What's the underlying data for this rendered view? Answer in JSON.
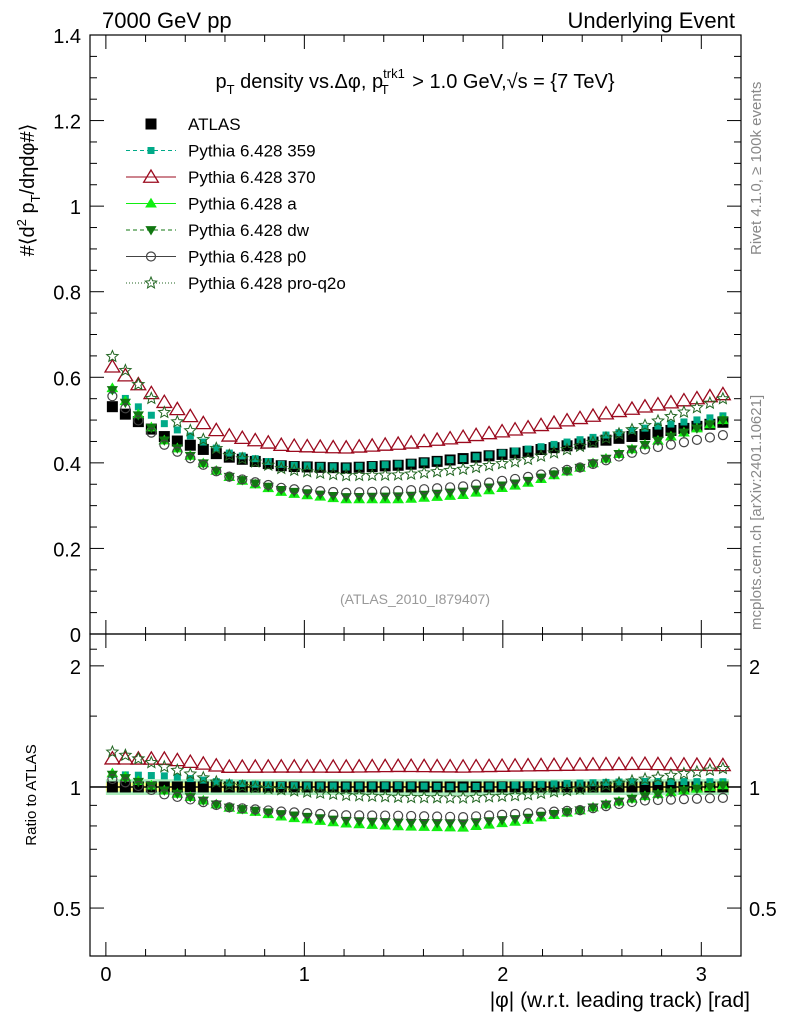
{
  "header": {
    "left": "7000 GeV pp",
    "right": "Underlying Event"
  },
  "side_labels": {
    "rivet": "Rivet 4.1.0, ≥ 100k events",
    "mcplots": "mcplots.cern.ch [arXiv:2401.10621]"
  },
  "watermark": "(ATLAS_2010_I879407)",
  "title": {
    "p": "p",
    "T": "T",
    "mid": " density vs.Δφ, p",
    "trk": "trk1",
    "tail": " > 1.0 GeV,√s = {7 TeV}"
  },
  "ratio_ylabel": "Ratio to ATLAS",
  "colors": {
    "atlas": "#000000",
    "p359": "#00aa88",
    "p370": "#9b0a1e",
    "pa": "#11ee11",
    "pdw": "#117711",
    "pp0": "#444444",
    "pq2o": "#226622",
    "band_inner": "#ffff88",
    "band_outer": "#aaeebb"
  },
  "chart_data": {
    "type": "scatter",
    "title": "p_T density vs.Δφ, p_T^trk1 > 1.0 GeV,√s = {7 TeV}",
    "xlabel": "|φ| (w.r.t. leading track) [rad]",
    "ylabel": "#⟨d² p_T/dηdφ#⟩",
    "xlim": [
      -0.08,
      3.2
    ],
    "ylim": [
      0,
      1.4
    ],
    "ratio_ylim": [
      0.38,
      2.4
    ],
    "xticks": [
      0,
      1,
      2,
      3
    ],
    "yticks": [
      0,
      0.2,
      0.4,
      0.6,
      0.8,
      1,
      1.2,
      1.4
    ],
    "ytick_labels": [
      "0",
      "0.2",
      "0.4",
      "0.6",
      "0.8",
      "1",
      "1.2",
      "1.4"
    ],
    "ratio_yticks": [
      0.5,
      1,
      2
    ],
    "ratio_ytick_labels": [
      "0.5",
      "1",
      "2"
    ],
    "x_count": 48,
    "x_start": 0.0327,
    "x_step": 0.06545,
    "legend_entries": [
      "ATLAS",
      "Pythia 6.428 359",
      "Pythia 6.428 370",
      "Pythia 6.428 a",
      "Pythia 6.428 dw",
      "Pythia 6.428 p0",
      "Pythia 6.428 pro-q2o"
    ],
    "series": [
      {
        "name": "ATLAS",
        "points": [
          [
            0,
            0.54
          ],
          [
            0.3,
            0.46
          ],
          [
            0.6,
            0.415
          ],
          [
            0.9,
            0.392
          ],
          [
            1.2,
            0.388
          ],
          [
            1.5,
            0.395
          ],
          [
            1.8,
            0.41
          ],
          [
            2.1,
            0.425
          ],
          [
            2.4,
            0.445
          ],
          [
            2.7,
            0.465
          ],
          [
            3.11,
            0.495
          ]
        ]
      },
      {
        "name": "Pythia 6.428 359",
        "points": [
          [
            0,
            0.58
          ],
          [
            0.3,
            0.49
          ],
          [
            0.6,
            0.425
          ],
          [
            0.9,
            0.395
          ],
          [
            1.2,
            0.39
          ],
          [
            1.5,
            0.398
          ],
          [
            1.8,
            0.41
          ],
          [
            2.1,
            0.43
          ],
          [
            2.4,
            0.455
          ],
          [
            2.7,
            0.48
          ],
          [
            3.11,
            0.51
          ]
        ]
      },
      {
        "name": "Pythia 6.428 370",
        "points": [
          [
            0,
            0.635
          ],
          [
            0.3,
            0.54
          ],
          [
            0.6,
            0.465
          ],
          [
            0.9,
            0.44
          ],
          [
            1.2,
            0.435
          ],
          [
            1.5,
            0.445
          ],
          [
            1.8,
            0.46
          ],
          [
            2.1,
            0.48
          ],
          [
            2.4,
            0.505
          ],
          [
            2.7,
            0.53
          ],
          [
            3.11,
            0.56
          ]
        ]
      },
      {
        "name": "Pythia 6.428 a",
        "points": [
          [
            0,
            0.59
          ],
          [
            0.3,
            0.45
          ],
          [
            0.6,
            0.37
          ],
          [
            0.9,
            0.33
          ],
          [
            1.2,
            0.315
          ],
          [
            1.5,
            0.315
          ],
          [
            1.8,
            0.325
          ],
          [
            2.1,
            0.35
          ],
          [
            2.4,
            0.39
          ],
          [
            2.7,
            0.44
          ],
          [
            3.11,
            0.5
          ]
        ]
      },
      {
        "name": "Pythia 6.428 dw",
        "points": [
          [
            0,
            0.585
          ],
          [
            0.3,
            0.45
          ],
          [
            0.6,
            0.37
          ],
          [
            0.9,
            0.335
          ],
          [
            1.2,
            0.32
          ],
          [
            1.5,
            0.322
          ],
          [
            1.8,
            0.333
          ],
          [
            2.1,
            0.355
          ],
          [
            2.4,
            0.39
          ],
          [
            2.7,
            0.44
          ],
          [
            3.11,
            0.5
          ]
        ]
      },
      {
        "name": "Pythia 6.428 p0",
        "points": [
          [
            0,
            0.57
          ],
          [
            0.3,
            0.44
          ],
          [
            0.6,
            0.37
          ],
          [
            0.9,
            0.34
          ],
          [
            1.2,
            0.33
          ],
          [
            1.5,
            0.335
          ],
          [
            1.8,
            0.345
          ],
          [
            2.1,
            0.365
          ],
          [
            2.4,
            0.39
          ],
          [
            2.7,
            0.43
          ],
          [
            3.11,
            0.465
          ]
        ]
      },
      {
        "name": "Pythia 6.428 pro-q2o",
        "points": [
          [
            0,
            0.665
          ],
          [
            0.3,
            0.515
          ],
          [
            0.6,
            0.42
          ],
          [
            0.9,
            0.385
          ],
          [
            1.2,
            0.37
          ],
          [
            1.5,
            0.372
          ],
          [
            1.8,
            0.385
          ],
          [
            2.1,
            0.405
          ],
          [
            2.4,
            0.44
          ],
          [
            2.7,
            0.485
          ],
          [
            3.11,
            0.55
          ]
        ]
      }
    ]
  }
}
